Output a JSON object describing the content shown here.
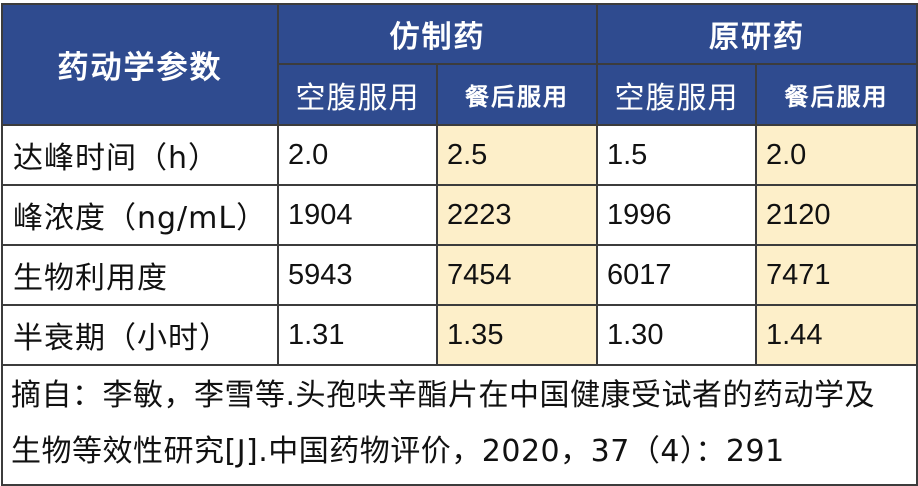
{
  "header": {
    "param_label": "药动学参数",
    "groups": [
      "仿制药",
      "原研药"
    ],
    "conditions": [
      "空腹服用",
      "餐后服用",
      "空腹服用",
      "餐后服用"
    ]
  },
  "rows": [
    {
      "param": "达峰时间（h）",
      "values": [
        "2.0",
        "2.5",
        "1.5",
        "2.0"
      ]
    },
    {
      "param": "峰浓度（ng/mL）",
      "values": [
        "1904",
        "2223",
        "1996",
        "2120"
      ]
    },
    {
      "param": "生物利用度",
      "values": [
        "5943",
        "7454",
        "6017",
        "7471"
      ]
    },
    {
      "param": "半衰期（小时）",
      "values": [
        "1.31",
        "1.35",
        "1.30",
        "1.44"
      ]
    }
  ],
  "source_note": "摘自：李敏，李雪等.头孢呋辛酯片在中国健康受试者的药动学及生物等效性研究[J].中国药物评价，2020，37（4）：291",
  "colors": {
    "header_bg": "#2f4b8f",
    "fed_highlight": "#fdefc9",
    "border": "#3c3c3c"
  }
}
